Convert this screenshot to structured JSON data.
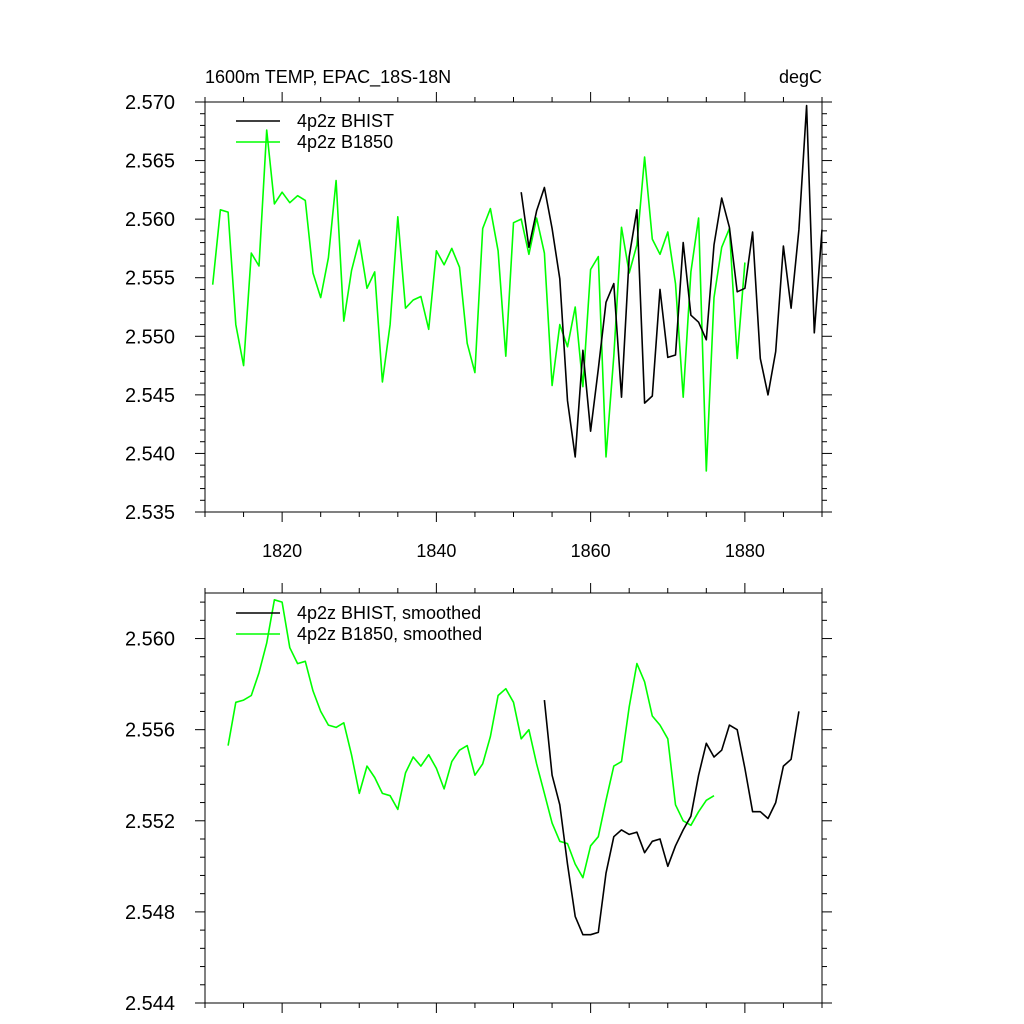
{
  "chart_data": [
    {
      "type": "line",
      "title": "1600m TEMP, EPAC_18S-18N",
      "units": "degC",
      "xlim": [
        1810,
        1890
      ],
      "ylim": [
        2.535,
        2.57
      ],
      "xticks": [
        1820,
        1840,
        1860,
        1880
      ],
      "yticks": [
        2.535,
        2.54,
        2.545,
        2.55,
        2.555,
        2.56,
        2.565,
        2.57
      ],
      "yticklabels": [
        "2.535",
        "2.540",
        "2.545",
        "2.550",
        "2.555",
        "2.560",
        "2.565",
        "2.570"
      ],
      "legend_position": "top-left",
      "series": [
        {
          "name": "4p2z BHIST",
          "color": "#000000",
          "x_start": 1851,
          "values": [
            2.5623,
            2.5576,
            2.5607,
            2.5627,
            2.5592,
            2.5549,
            2.5445,
            2.5397,
            2.5488,
            2.5419,
            2.5472,
            2.5529,
            2.5545,
            2.5448,
            2.5568,
            2.5608,
            2.5443,
            2.5449,
            2.554,
            2.5482,
            2.5484,
            2.558,
            2.5518,
            2.5512,
            2.5497,
            2.5578,
            2.5618,
            2.5593,
            2.5538,
            2.5541,
            2.5589,
            2.5481,
            2.545,
            2.5487,
            2.5577,
            2.5524,
            2.5591,
            2.5697,
            2.5503,
            2.5591
          ]
        },
        {
          "name": "4p2z B1850",
          "color": "#00ff00",
          "x_start": 1811,
          "values": [
            2.5544,
            2.5608,
            2.5606,
            2.551,
            2.5475,
            2.5571,
            2.556,
            2.5676,
            2.5613,
            2.5623,
            2.5614,
            2.562,
            2.5616,
            2.5554,
            2.5533,
            2.5567,
            2.5633,
            2.5513,
            2.5556,
            2.5582,
            2.5541,
            2.5555,
            2.5461,
            2.551,
            2.5602,
            2.5524,
            2.5531,
            2.5534,
            2.5506,
            2.5573,
            2.5561,
            2.5575,
            2.5559,
            2.5494,
            2.5469,
            2.5592,
            2.5609,
            2.5573,
            2.5483,
            2.5597,
            2.56,
            2.557,
            2.5601,
            2.5571,
            2.5458,
            2.551,
            2.5491,
            2.5525,
            2.5457,
            2.5557,
            2.5568,
            2.5397,
            2.5483,
            2.5593,
            2.5554,
            2.5578,
            2.5653,
            2.5583,
            2.557,
            2.5589,
            2.5545,
            2.5448,
            2.5555,
            2.5601,
            2.5385,
            2.5533,
            2.5576,
            2.5592,
            2.5481,
            2.5563
          ]
        }
      ]
    },
    {
      "type": "line",
      "title": "",
      "xlim": [
        1810,
        1890
      ],
      "ylim": [
        2.544,
        2.562
      ],
      "xticks": [
        1820,
        1840,
        1860,
        1880
      ],
      "yticks": [
        2.544,
        2.548,
        2.552,
        2.556,
        2.56
      ],
      "yticklabels": [
        "2.544",
        "2.548",
        "2.552",
        "2.556",
        "2.560"
      ],
      "legend_position": "top-left",
      "series": [
        {
          "name": "4p2z BHIST, smoothed",
          "color": "#000000",
          "x_start": 1854,
          "values": [
            2.5573,
            2.554,
            2.5527,
            2.5501,
            2.5478,
            2.547,
            2.547,
            2.5471,
            2.5497,
            2.5513,
            2.5516,
            2.5514,
            2.5515,
            2.5506,
            2.5511,
            2.5512,
            2.55,
            2.5509,
            2.5516,
            2.5522,
            2.554,
            2.5554,
            2.5548,
            2.5551,
            2.5562,
            2.556,
            2.5543,
            2.5524,
            2.5524,
            2.5521,
            2.5528,
            2.5544,
            2.5547,
            2.5568
          ]
        },
        {
          "name": "4p2z B1850, smoothed",
          "color": "#00ff00",
          "x_start": 1813,
          "values": [
            2.5553,
            2.5572,
            2.5573,
            2.5575,
            2.5585,
            2.5598,
            2.5617,
            2.5616,
            2.5596,
            2.5589,
            2.559,
            2.5577,
            2.5568,
            2.5562,
            2.5561,
            2.5563,
            2.5549,
            2.5532,
            2.5544,
            2.5539,
            2.5532,
            2.5531,
            2.5525,
            2.5541,
            2.5548,
            2.5544,
            2.5549,
            2.5543,
            2.5534,
            2.5546,
            2.5551,
            2.5553,
            2.554,
            2.5545,
            2.5557,
            2.5575,
            2.5578,
            2.5572,
            2.5556,
            2.556,
            2.5545,
            2.5532,
            2.5519,
            2.5511,
            2.551,
            2.5501,
            2.5495,
            2.5509,
            2.5513,
            2.5529,
            2.5544,
            2.5546,
            2.557,
            2.5589,
            2.5581,
            2.5566,
            2.5562,
            2.5556,
            2.5527,
            2.552,
            2.5518,
            2.5524,
            2.5529,
            2.5531
          ]
        }
      ]
    }
  ]
}
